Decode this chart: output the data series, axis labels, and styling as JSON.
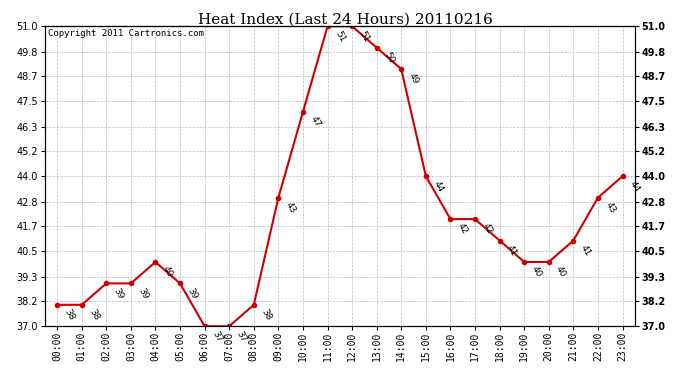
{
  "title": "Heat Index (Last 24 Hours) 20110216",
  "copyright": "Copyright 2011 Cartronics.com",
  "hours": [
    "00:00",
    "01:00",
    "02:00",
    "03:00",
    "04:00",
    "05:00",
    "06:00",
    "07:00",
    "08:00",
    "09:00",
    "10:00",
    "11:00",
    "12:00",
    "13:00",
    "14:00",
    "15:00",
    "16:00",
    "17:00",
    "18:00",
    "19:00",
    "20:00",
    "21:00",
    "22:00",
    "23:00"
  ],
  "values": [
    38,
    38,
    39,
    39,
    40,
    39,
    37,
    37,
    38,
    43,
    47,
    51,
    51,
    50,
    49,
    44,
    42,
    42,
    41,
    40,
    40,
    41,
    43,
    44
  ],
  "yticks": [
    37.0,
    38.2,
    39.3,
    40.5,
    41.7,
    42.8,
    44.0,
    45.2,
    46.3,
    47.5,
    48.7,
    49.8,
    51.0
  ],
  "ymin": 37.0,
  "ymax": 51.0,
  "line_color": "#cc0000",
  "marker_color": "#cc0000",
  "bg_color": "#ffffff",
  "grid_color": "#bbbbbb",
  "title_fontsize": 11,
  "label_fontsize": 7,
  "copyright_fontsize": 6.5,
  "annotation_fontsize": 6.5
}
